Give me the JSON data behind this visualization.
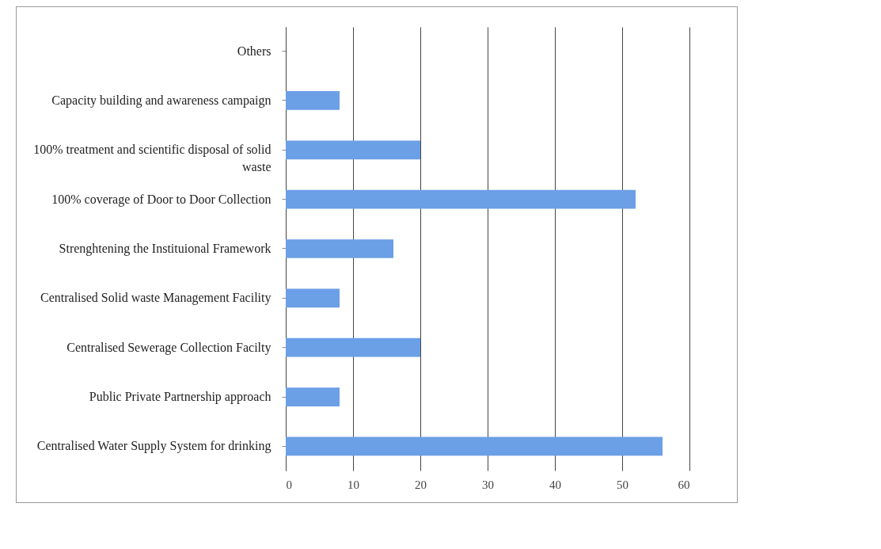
{
  "chart_data": {
    "type": "bar",
    "orientation": "horizontal",
    "categories": [
      "Others",
      "Capacity building and awareness campaign",
      "100% treatment and scientific disposal of solid waste",
      "100% coverage of Door to Door Collection",
      "Strenghtening the Instituional Framework",
      "Centralised Solid waste Management Facility",
      "Centralised Sewerage Collection Facilty",
      "Public Private Partnership approach",
      "Centralised Water Supply System  for drinking"
    ],
    "values": [
      0,
      8,
      20,
      52,
      16,
      8,
      20,
      8,
      56
    ],
    "color": "#6b9fe6",
    "xlim": [
      0,
      60
    ],
    "xticks": [
      0,
      10,
      20,
      30,
      40,
      50,
      60
    ],
    "grid": "x"
  }
}
